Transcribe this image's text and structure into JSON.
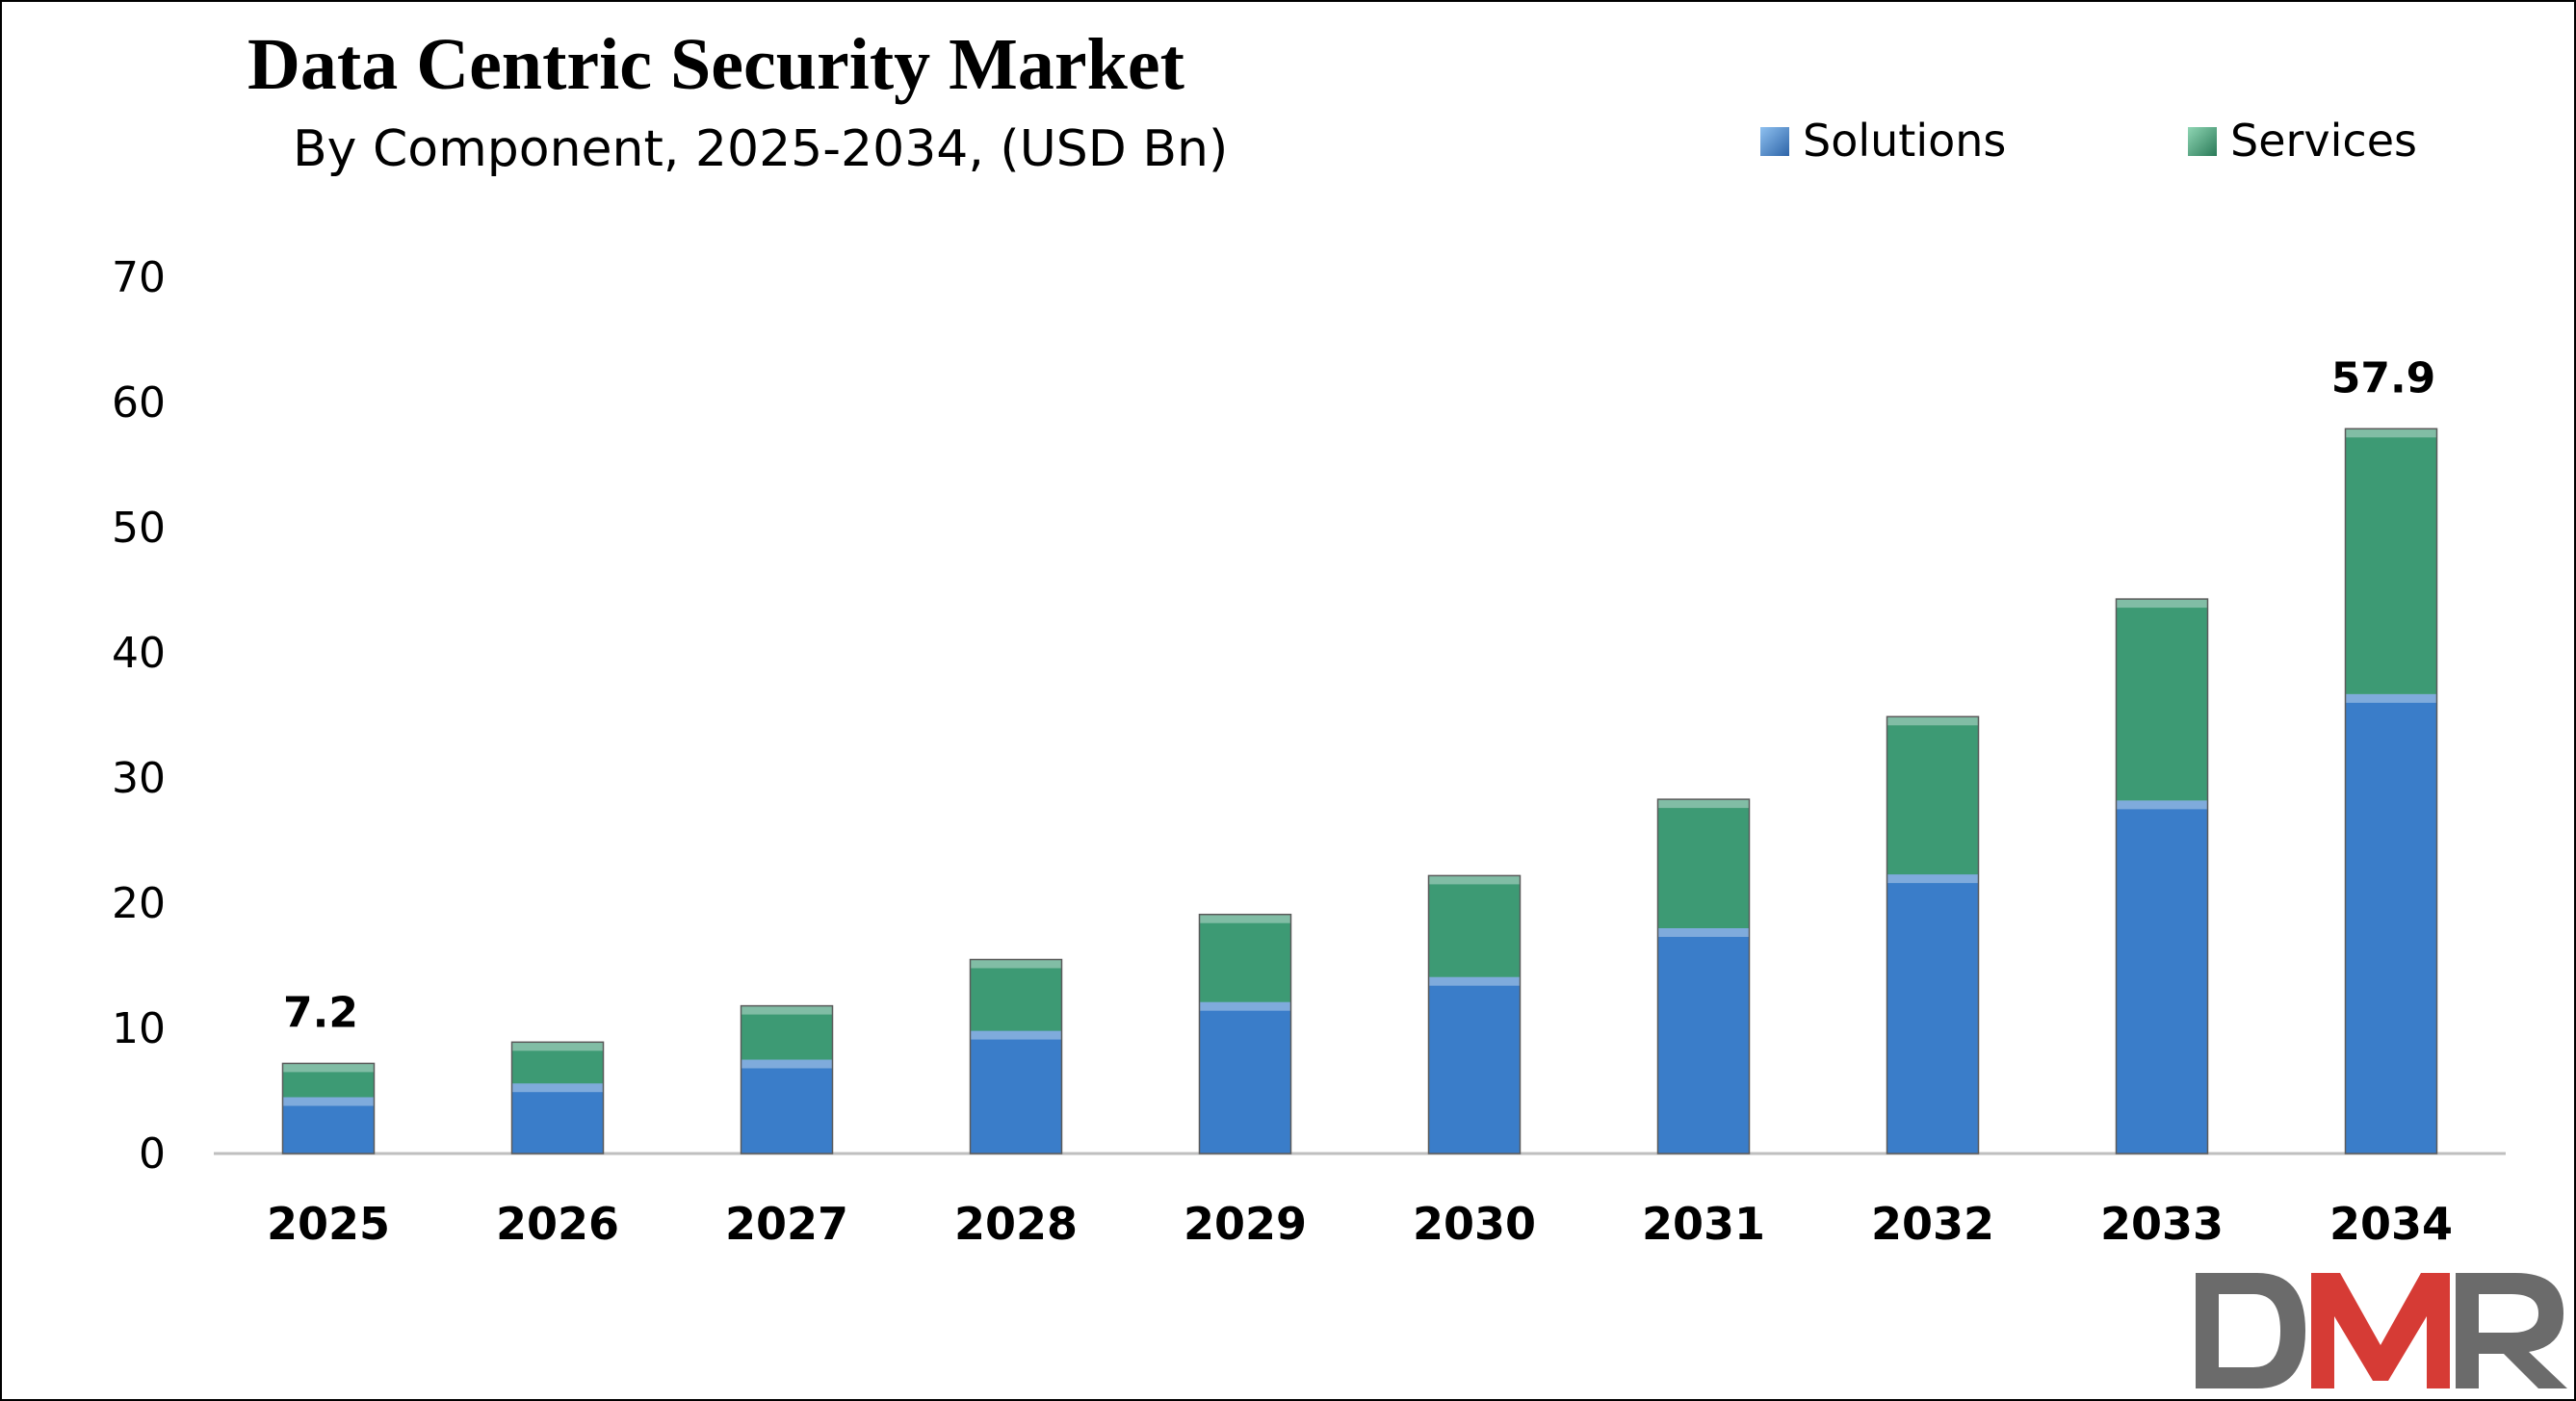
{
  "chart_data": {
    "type": "bar",
    "stacked": true,
    "title": "Data Centric Security Market",
    "subtitle": "By Component, 2025-2034, (USD Bn)",
    "categories": [
      "2025",
      "2026",
      "2027",
      "2028",
      "2029",
      "2030",
      "2031",
      "2032",
      "2033",
      "2034"
    ],
    "series": [
      {
        "name": "Solutions",
        "color": "#3a7dc9",
        "values": [
          4.5,
          5.6,
          7.5,
          9.8,
          12.1,
          14.1,
          18.0,
          22.3,
          28.2,
          36.7
        ]
      },
      {
        "name": "Services",
        "color": "#3d9a74",
        "values": [
          2.7,
          3.3,
          4.3,
          5.7,
          7.0,
          8.1,
          10.3,
          12.6,
          16.1,
          21.2
        ]
      }
    ],
    "data_labels": [
      {
        "category": "2025",
        "text": "7.2"
      },
      {
        "category": "2034",
        "text": "57.9"
      }
    ],
    "yticks": [
      "0",
      "10",
      "20",
      "30",
      "40",
      "50",
      "60",
      "70"
    ],
    "ylim": [
      0,
      70
    ],
    "xlabel": "",
    "ylabel": "",
    "grid": false,
    "legend_position": "top-right"
  },
  "logo": {
    "text": "DMR",
    "colors": {
      "d": "#6b6b6b",
      "m": "#d63b35",
      "r": "#6b6b6b"
    }
  }
}
